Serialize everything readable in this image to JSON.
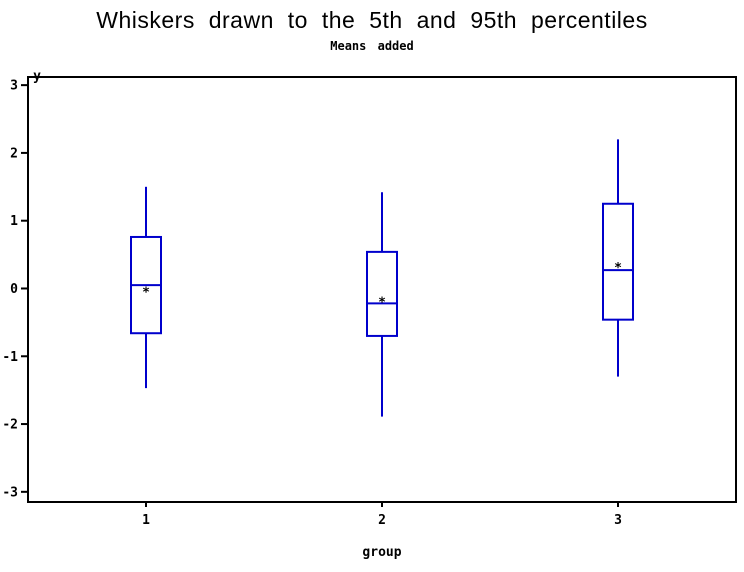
{
  "title": "Whiskers drawn to the 5th and 95th percentiles",
  "subtitle": "Means added",
  "chart_data": {
    "type": "boxplot",
    "title": "Whiskers drawn to the 5th and 95th percentiles",
    "subtitle": "Means added",
    "xlabel": "group",
    "ylabel": "y",
    "categories": [
      "1",
      "2",
      "3"
    ],
    "yticks": [
      3,
      2,
      1,
      0,
      -1,
      -2,
      -3
    ],
    "ylim": [
      -3.15,
      3.12
    ],
    "grid": false,
    "legend_position": "none",
    "mean_marker": "*",
    "series": [
      {
        "group": "1",
        "whisker_low": -1.47,
        "q1": -0.66,
        "median": 0.05,
        "q3": 0.76,
        "whisker_high": 1.5,
        "mean": 0.0
      },
      {
        "group": "2",
        "whisker_low": -1.89,
        "q1": -0.7,
        "median": -0.22,
        "q3": 0.54,
        "whisker_high": 1.42,
        "mean": -0.15
      },
      {
        "group": "3",
        "whisker_low": -1.3,
        "q1": -0.46,
        "median": 0.27,
        "q3": 1.25,
        "whisker_high": 2.2,
        "mean": 0.36
      }
    ],
    "colors": {
      "box": "#0000cc",
      "axis": "#000000",
      "text": "#000000",
      "background": "#ffffff"
    }
  }
}
